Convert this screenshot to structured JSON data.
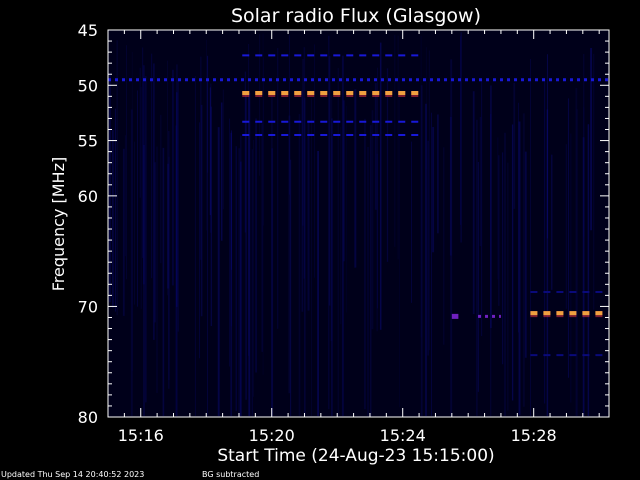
{
  "colors": {
    "background": "#000000",
    "plot_background": "#00001a",
    "axis": "#ffffff",
    "low_intensity": "#0a0a7a",
    "mid_intensity": "#1818d8",
    "high_intensity": "#f0a040",
    "peak_intensity": "#e03040",
    "purple_intensity": "#7020c0"
  },
  "chart_data": {
    "type": "heatmap",
    "title": "Solar radio Flux (Glasgow)",
    "xlabel": "Start Time (24-Aug-23 15:15:00)",
    "ylabel": "Frequency [MHz]",
    "x_unit": "minutes after 15:15:00",
    "xlim": [
      0,
      15.3
    ],
    "ylim": [
      80,
      45
    ],
    "x_ticks": [
      {
        "value": 1,
        "label": "15:16"
      },
      {
        "value": 5,
        "label": "15:20"
      },
      {
        "value": 9,
        "label": "15:24"
      },
      {
        "value": 13,
        "label": "15:28"
      }
    ],
    "y_ticks": [
      {
        "value": 45,
        "label": "45"
      },
      {
        "value": 50,
        "label": "50"
      },
      {
        "value": 55,
        "label": "55"
      },
      {
        "value": 60,
        "label": "60"
      },
      {
        "value": 70,
        "label": "70"
      },
      {
        "value": 80,
        "label": "80"
      }
    ],
    "y_minor_ticks": [
      46,
      47,
      48,
      49,
      51,
      52,
      53,
      54,
      56,
      57,
      58,
      59,
      61,
      62,
      63,
      64,
      65,
      66,
      67,
      68,
      69,
      71,
      72,
      73,
      74,
      75,
      76,
      77,
      78,
      79
    ],
    "features": [
      {
        "freq": 49.5,
        "x_start": 0.0,
        "x_end": 15.3,
        "intensity": "mid",
        "pattern": "dotted"
      },
      {
        "freq": 47.3,
        "x_start": 4.1,
        "x_end": 9.5,
        "intensity": "mid",
        "pattern": "dashed"
      },
      {
        "freq": 50.7,
        "x_start": 4.1,
        "x_end": 9.5,
        "intensity": "high",
        "pattern": "dashed"
      },
      {
        "freq": 53.3,
        "x_start": 4.1,
        "x_end": 9.5,
        "intensity": "mid",
        "pattern": "dashed"
      },
      {
        "freq": 54.5,
        "x_start": 4.1,
        "x_end": 9.5,
        "intensity": "mid",
        "pattern": "dashed"
      },
      {
        "freq": 68.7,
        "x_start": 12.9,
        "x_end": 15.3,
        "intensity": "low",
        "pattern": "dashed"
      },
      {
        "freq": 70.6,
        "x_start": 12.9,
        "x_end": 15.3,
        "intensity": "high",
        "pattern": "dashed"
      },
      {
        "freq": 70.9,
        "x_start": 10.5,
        "x_end": 10.7,
        "intensity": "purple",
        "pattern": "solid"
      },
      {
        "freq": 70.9,
        "x_start": 11.3,
        "x_end": 12.0,
        "intensity": "purple",
        "pattern": "dotted"
      },
      {
        "freq": 74.4,
        "x_start": 12.9,
        "x_end": 15.3,
        "intensity": "low",
        "pattern": "dashed"
      }
    ]
  },
  "footer": {
    "updated": "Updated Thu Sep 14 20:40:52 2023",
    "bg_note": "BG subtracted"
  }
}
